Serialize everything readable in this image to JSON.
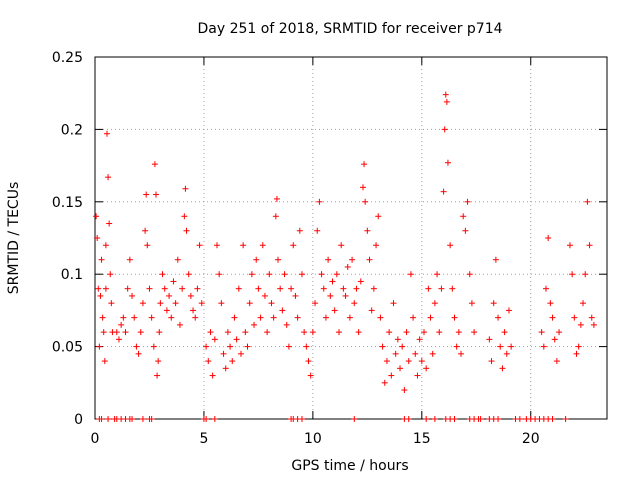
{
  "chart_data": {
    "type": "scatter",
    "title": "Day 251 of 2018, SRMTID for receiver p714",
    "xlabel": "GPS time / hours",
    "ylabel": "SRMTID / TECUs",
    "xlim": [
      0,
      23.5
    ],
    "ylim": [
      0,
      0.25
    ],
    "xticks": [
      0,
      5,
      10,
      15,
      20
    ],
    "xtick_labels": [
      "0",
      "5",
      "10",
      "15",
      "20"
    ],
    "yticks": [
      0,
      0.05,
      0.1,
      0.15,
      0.2,
      0.25
    ],
    "ytick_labels": [
      "0",
      "0.05",
      "0.1",
      "0.15",
      "0.2",
      "0.25"
    ],
    "grid": true,
    "marker": "+",
    "color": "#ff0000",
    "series": [
      {
        "name": "SRMTID",
        "points": [
          [
            0.05,
            0.14
          ],
          [
            0.1,
            0.125
          ],
          [
            0.15,
            0.09
          ],
          [
            0.2,
            0.05
          ],
          [
            0.25,
            0.085
          ],
          [
            0.3,
            0.11
          ],
          [
            0.35,
            0.07
          ],
          [
            0.4,
            0.06
          ],
          [
            0.45,
            0.04
          ],
          [
            0.5,
            0.09
          ],
          [
            0.5,
            0.12
          ],
          [
            0.55,
            0.197
          ],
          [
            0.6,
            0.167
          ],
          [
            0.65,
            0.135
          ],
          [
            0.7,
            0.1
          ],
          [
            0.75,
            0.08
          ],
          [
            0.8,
            0.06
          ],
          [
            1.0,
            0.06
          ],
          [
            1.1,
            0.055
          ],
          [
            1.2,
            0.065
          ],
          [
            1.3,
            0.07
          ],
          [
            1.4,
            0.06
          ],
          [
            1.5,
            0.09
          ],
          [
            1.6,
            0.11
          ],
          [
            1.7,
            0.085
          ],
          [
            1.8,
            0.07
          ],
          [
            1.9,
            0.05
          ],
          [
            2.0,
            0.045
          ],
          [
            2.1,
            0.06
          ],
          [
            2.2,
            0.08
          ],
          [
            2.3,
            0.13
          ],
          [
            2.35,
            0.155
          ],
          [
            2.4,
            0.12
          ],
          [
            2.5,
            0.09
          ],
          [
            2.6,
            0.07
          ],
          [
            2.7,
            0.05
          ],
          [
            2.75,
            0.176
          ],
          [
            2.8,
            0.155
          ],
          [
            2.85,
            0.03
          ],
          [
            2.9,
            0.04
          ],
          [
            2.95,
            0.06
          ],
          [
            3.0,
            0.08
          ],
          [
            3.1,
            0.1
          ],
          [
            3.2,
            0.09
          ],
          [
            3.3,
            0.075
          ],
          [
            3.4,
            0.085
          ],
          [
            3.5,
            0.07
          ],
          [
            3.6,
            0.095
          ],
          [
            3.7,
            0.08
          ],
          [
            3.8,
            0.11
          ],
          [
            3.9,
            0.065
          ],
          [
            4.0,
            0.09
          ],
          [
            4.1,
            0.14
          ],
          [
            4.15,
            0.159
          ],
          [
            4.2,
            0.13
          ],
          [
            4.3,
            0.1
          ],
          [
            4.4,
            0.085
          ],
          [
            4.5,
            0.075
          ],
          [
            4.6,
            0.07
          ],
          [
            4.7,
            0.09
          ],
          [
            4.8,
            0.12
          ],
          [
            4.9,
            0.08
          ],
          [
            5.1,
            0.05
          ],
          [
            5.2,
            0.04
          ],
          [
            5.3,
            0.06
          ],
          [
            5.4,
            0.03
          ],
          [
            5.5,
            0.055
          ],
          [
            5.6,
            0.12
          ],
          [
            5.7,
            0.1
          ],
          [
            5.8,
            0.08
          ],
          [
            5.9,
            0.045
          ],
          [
            6.0,
            0.035
          ],
          [
            6.1,
            0.06
          ],
          [
            6.2,
            0.05
          ],
          [
            6.3,
            0.04
          ],
          [
            6.4,
            0.07
          ],
          [
            6.5,
            0.055
          ],
          [
            6.6,
            0.09
          ],
          [
            6.7,
            0.045
          ],
          [
            6.8,
            0.12
          ],
          [
            6.9,
            0.06
          ],
          [
            7.0,
            0.05
          ],
          [
            7.1,
            0.08
          ],
          [
            7.2,
            0.1
          ],
          [
            7.3,
            0.065
          ],
          [
            7.4,
            0.11
          ],
          [
            7.5,
            0.09
          ],
          [
            7.6,
            0.07
          ],
          [
            7.7,
            0.12
          ],
          [
            7.8,
            0.085
          ],
          [
            7.9,
            0.06
          ],
          [
            8.0,
            0.1
          ],
          [
            8.1,
            0.08
          ],
          [
            8.2,
            0.07
          ],
          [
            8.3,
            0.14
          ],
          [
            8.35,
            0.152
          ],
          [
            8.4,
            0.11
          ],
          [
            8.5,
            0.09
          ],
          [
            8.6,
            0.075
          ],
          [
            8.7,
            0.1
          ],
          [
            8.8,
            0.065
          ],
          [
            8.9,
            0.05
          ],
          [
            9.0,
            0.09
          ],
          [
            9.1,
            0.12
          ],
          [
            9.2,
            0.085
          ],
          [
            9.3,
            0.07
          ],
          [
            9.4,
            0.13
          ],
          [
            9.5,
            0.1
          ],
          [
            9.6,
            0.06
          ],
          [
            9.7,
            0.05
          ],
          [
            9.8,
            0.04
          ],
          [
            9.9,
            0.03
          ],
          [
            10.0,
            0.06
          ],
          [
            10.1,
            0.08
          ],
          [
            10.2,
            0.13
          ],
          [
            10.3,
            0.15
          ],
          [
            10.4,
            0.1
          ],
          [
            10.5,
            0.09
          ],
          [
            10.6,
            0.07
          ],
          [
            10.7,
            0.11
          ],
          [
            10.8,
            0.085
          ],
          [
            10.9,
            0.095
          ],
          [
            11.0,
            0.075
          ],
          [
            11.1,
            0.1
          ],
          [
            11.2,
            0.06
          ],
          [
            11.3,
            0.12
          ],
          [
            11.4,
            0.09
          ],
          [
            11.5,
            0.085
          ],
          [
            11.6,
            0.105
          ],
          [
            11.7,
            0.07
          ],
          [
            11.8,
            0.11
          ],
          [
            11.9,
            0.08
          ],
          [
            12.0,
            0.09
          ],
          [
            12.1,
            0.06
          ],
          [
            12.2,
            0.095
          ],
          [
            12.3,
            0.16
          ],
          [
            12.35,
            0.176
          ],
          [
            12.4,
            0.15
          ],
          [
            12.5,
            0.13
          ],
          [
            12.6,
            0.11
          ],
          [
            12.7,
            0.075
          ],
          [
            12.8,
            0.09
          ],
          [
            12.9,
            0.12
          ],
          [
            13.0,
            0.14
          ],
          [
            13.1,
            0.07
          ],
          [
            13.2,
            0.05
          ],
          [
            13.3,
            0.025
          ],
          [
            13.4,
            0.04
          ],
          [
            13.5,
            0.06
          ],
          [
            13.6,
            0.03
          ],
          [
            13.7,
            0.08
          ],
          [
            13.8,
            0.045
          ],
          [
            13.9,
            0.055
          ],
          [
            14.0,
            0.035
          ],
          [
            14.1,
            0.05
          ],
          [
            14.2,
            0.02
          ],
          [
            14.3,
            0.06
          ],
          [
            14.4,
            0.04
          ],
          [
            14.5,
            0.1
          ],
          [
            14.6,
            0.07
          ],
          [
            14.7,
            0.045
          ],
          [
            14.8,
            0.03
          ],
          [
            14.9,
            0.055
          ],
          [
            15.0,
            0.04
          ],
          [
            15.1,
            0.06
          ],
          [
            15.2,
            0.035
          ],
          [
            15.3,
            0.09
          ],
          [
            15.4,
            0.07
          ],
          [
            15.5,
            0.045
          ],
          [
            15.6,
            0.08
          ],
          [
            15.7,
            0.1
          ],
          [
            15.8,
            0.06
          ],
          [
            15.9,
            0.09
          ],
          [
            16.0,
            0.157
          ],
          [
            16.05,
            0.2
          ],
          [
            16.1,
            0.224
          ],
          [
            16.15,
            0.219
          ],
          [
            16.2,
            0.177
          ],
          [
            16.3,
            0.12
          ],
          [
            16.4,
            0.09
          ],
          [
            16.5,
            0.07
          ],
          [
            16.6,
            0.05
          ],
          [
            16.7,
            0.06
          ],
          [
            16.8,
            0.045
          ],
          [
            16.9,
            0.14
          ],
          [
            17.0,
            0.13
          ],
          [
            17.1,
            0.15
          ],
          [
            17.2,
            0.1
          ],
          [
            17.3,
            0.08
          ],
          [
            17.4,
            0.06
          ],
          [
            18.1,
            0.055
          ],
          [
            18.2,
            0.04
          ],
          [
            18.3,
            0.08
          ],
          [
            18.4,
            0.11
          ],
          [
            18.5,
            0.07
          ],
          [
            18.6,
            0.05
          ],
          [
            18.7,
            0.035
          ],
          [
            18.8,
            0.06
          ],
          [
            18.9,
            0.045
          ],
          [
            19.0,
            0.075
          ],
          [
            19.1,
            0.05
          ],
          [
            20.5,
            0.06
          ],
          [
            20.6,
            0.05
          ],
          [
            20.7,
            0.09
          ],
          [
            20.8,
            0.125
          ],
          [
            20.9,
            0.08
          ],
          [
            21.0,
            0.07
          ],
          [
            21.1,
            0.055
          ],
          [
            21.2,
            0.04
          ],
          [
            21.3,
            0.06
          ],
          [
            21.8,
            0.12
          ],
          [
            21.9,
            0.1
          ],
          [
            22.0,
            0.07
          ],
          [
            22.1,
            0.045
          ],
          [
            22.2,
            0.05
          ],
          [
            22.3,
            0.065
          ],
          [
            22.4,
            0.08
          ],
          [
            22.5,
            0.1
          ],
          [
            22.6,
            0.15
          ],
          [
            22.7,
            0.12
          ],
          [
            22.8,
            0.07
          ],
          [
            22.9,
            0.065
          ]
        ],
        "zero_hours": [
          0.2,
          0.3,
          0.6,
          0.9,
          1.0,
          1.2,
          1.4,
          1.6,
          1.7,
          2.2,
          2.5,
          2.6,
          5.0,
          5.1,
          5.5,
          9.0,
          9.1,
          9.3,
          9.5,
          11.9,
          14.2,
          14.4,
          15.2,
          15.6,
          16.1,
          16.3,
          16.5,
          17.2,
          17.4,
          17.6,
          17.7,
          18.1,
          18.3,
          18.5,
          19.3,
          19.5,
          19.8,
          20.0,
          20.2,
          20.4,
          20.6,
          20.8,
          21.0,
          21.6
        ]
      }
    ]
  }
}
